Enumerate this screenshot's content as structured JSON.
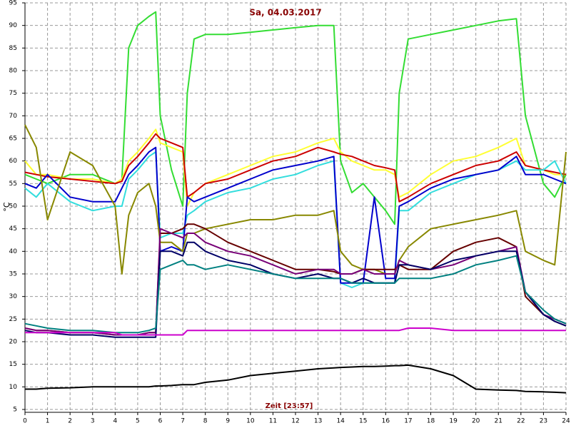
{
  "chart_data": {
    "type": "line",
    "title": "Sa, 04.03.2017",
    "x_label": "Zeit [23:57]",
    "y_label": "°C",
    "xlim": [
      0,
      24
    ],
    "xticks": [
      0,
      1,
      2,
      3,
      4,
      5,
      6,
      7,
      8,
      9,
      10,
      11,
      12,
      13,
      14,
      15,
      16,
      17,
      18,
      19,
      20,
      21,
      22,
      23,
      24
    ],
    "ylim": [
      5,
      95
    ],
    "yticks": [
      5,
      10,
      15,
      20,
      25,
      30,
      35,
      40,
      45,
      50,
      55,
      60,
      65,
      70,
      75,
      80,
      85,
      90,
      95
    ],
    "grid": true,
    "x": [
      0,
      0.5,
      1,
      2,
      3,
      4,
      4.3,
      4.6,
      5,
      5.5,
      5.8,
      6,
      6.5,
      7,
      7.2,
      7.5,
      8,
      9,
      10,
      11,
      12,
      13,
      13.7,
      14,
      14.5,
      15,
      15.5,
      16,
      16.4,
      16.6,
      17,
      18,
      19,
      20,
      21,
      21.8,
      22.2,
      23,
      23.5,
      24
    ],
    "series": [
      {
        "color": "#33dd33",
        "values": [
          57,
          56,
          55,
          57,
          57,
          55,
          56,
          85,
          90,
          92,
          93,
          70,
          58,
          50,
          75,
          87,
          88,
          88,
          88.5,
          89,
          89.5,
          90,
          90,
          60,
          53,
          55,
          52,
          49,
          46,
          75,
          87,
          88,
          89,
          90,
          91,
          91.5,
          70,
          55,
          52,
          57
        ]
      },
      {
        "color": "#ffff33",
        "values": [
          60,
          57,
          57,
          56,
          56,
          55,
          56,
          60,
          62,
          65,
          67,
          64,
          63,
          62,
          50,
          53,
          55,
          57,
          59,
          61,
          62,
          64,
          65,
          62,
          60,
          59,
          58,
          58,
          57,
          52,
          53,
          57,
          60,
          61,
          63,
          65,
          59,
          58,
          57,
          57
        ]
      },
      {
        "color": "#cc0000",
        "values": [
          57.5,
          57,
          56.5,
          56,
          55.5,
          55,
          55.5,
          59,
          61,
          64,
          66,
          65,
          64,
          63,
          52,
          53,
          55,
          56,
          58,
          60,
          61,
          63,
          62,
          61.5,
          61,
          60,
          59,
          58.5,
          58,
          51,
          52,
          55,
          57,
          59,
          60,
          62,
          59,
          58,
          57.5,
          57
        ]
      },
      {
        "color": "#33dddd",
        "values": [
          54,
          52,
          55,
          51,
          49,
          50,
          50,
          56,
          58,
          61,
          62,
          43,
          44,
          44,
          48,
          49,
          51,
          53,
          54,
          56,
          57,
          59,
          60,
          33,
          32,
          33,
          33,
          33,
          33,
          49,
          49,
          53,
          55,
          57,
          58,
          60,
          58,
          58,
          60,
          55
        ]
      },
      {
        "color": "#0000cc",
        "values": [
          55,
          54,
          57,
          52,
          51,
          51,
          54,
          57,
          59,
          62,
          63,
          40,
          41,
          40,
          52,
          51,
          52,
          54,
          56,
          58,
          59,
          60,
          61,
          33,
          33,
          33,
          52,
          34,
          34,
          50,
          51,
          54,
          56,
          57,
          58,
          61,
          57,
          57,
          56,
          55
        ]
      },
      {
        "color": "#888800",
        "values": [
          68,
          63,
          47,
          62,
          59,
          50,
          35,
          48,
          53,
          55,
          50,
          42,
          42,
          40,
          44,
          44,
          45,
          46,
          47,
          47,
          48,
          48,
          49,
          40,
          37,
          36,
          36,
          35,
          35,
          38,
          41,
          45,
          46,
          47,
          48,
          49,
          40,
          38,
          37,
          62
        ]
      },
      {
        "color": "#660000",
        "values": [
          23,
          22.5,
          22.5,
          22,
          22,
          21.5,
          21.5,
          21.5,
          21.5,
          22,
          22,
          44,
          44,
          45,
          46,
          46,
          45,
          42,
          40,
          38,
          36,
          36,
          35.5,
          35,
          35,
          36,
          36,
          36,
          36,
          37,
          36,
          36,
          40,
          42,
          43,
          41,
          30,
          26,
          24.5,
          23.5
        ]
      },
      {
        "color": "#770077",
        "values": [
          23,
          22.5,
          22.5,
          22,
          22,
          21.5,
          21.5,
          21.5,
          21.5,
          22,
          22,
          45,
          44,
          43,
          44,
          44,
          42,
          40,
          39,
          37,
          35,
          36,
          36,
          35,
          35,
          36,
          35,
          35,
          35,
          38,
          37,
          36,
          37,
          39,
          40,
          41,
          31,
          26,
          25,
          24
        ]
      },
      {
        "color": "#000066",
        "values": [
          22.5,
          22,
          22,
          21.5,
          21.5,
          21,
          21,
          21,
          21,
          21,
          21,
          40,
          40,
          39,
          42,
          42,
          40,
          38,
          37,
          35,
          34,
          35,
          34,
          34,
          33,
          34,
          33,
          33,
          33,
          37,
          37,
          36,
          38,
          39,
          40,
          40,
          31,
          26,
          24.5,
          23.5
        ]
      },
      {
        "color": "#008080",
        "values": [
          24,
          23.5,
          23,
          22.5,
          22.5,
          22,
          22,
          22,
          22,
          22.5,
          23,
          36,
          37,
          38,
          37,
          37,
          36,
          37,
          36,
          35,
          34,
          34,
          34,
          34,
          33,
          33,
          33,
          33,
          33,
          34,
          34,
          34,
          35,
          37,
          38,
          39,
          31,
          27,
          25,
          24
        ]
      },
      {
        "color": "#cc00cc",
        "values": [
          22,
          22,
          22,
          22,
          22,
          22,
          21.5,
          21.5,
          21.5,
          21.5,
          21.5,
          21.5,
          21.5,
          21.5,
          22.5,
          22.5,
          22.5,
          22.5,
          22.5,
          22.5,
          22.5,
          22.5,
          22.5,
          22.5,
          22.5,
          22.5,
          22.5,
          22.5,
          22.5,
          22.5,
          23,
          23,
          22.5,
          22.5,
          22.5,
          22.5,
          22.5,
          22.5,
          22.5,
          22.5
        ]
      },
      {
        "color": "#000000",
        "values": [
          9.5,
          9.5,
          9.7,
          9.8,
          10,
          10,
          10,
          10,
          10,
          10,
          10.2,
          10.2,
          10.3,
          10.5,
          10.5,
          10.5,
          11,
          11.5,
          12.5,
          13,
          13.5,
          14,
          14.2,
          14.3,
          14.4,
          14.5,
          14.5,
          14.6,
          14.7,
          14.7,
          14.8,
          14,
          12.5,
          9.5,
          9.3,
          9.2,
          9,
          8.9,
          8.8,
          8.7
        ]
      }
    ]
  }
}
